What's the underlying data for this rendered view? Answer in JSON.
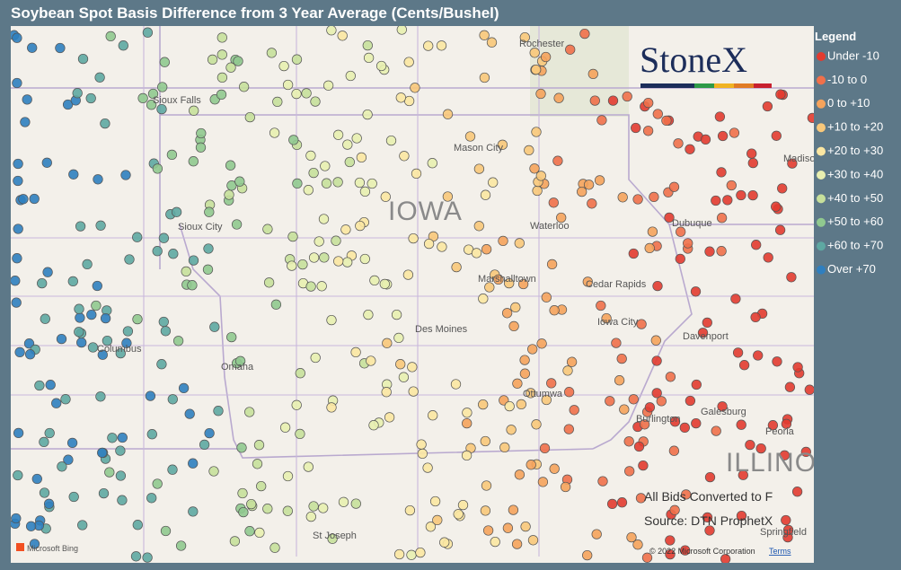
{
  "header": {
    "title": "Soybean Spot Basis Difference from 3 Year Average (Cents/Bushel)"
  },
  "legend": {
    "title": "Legend",
    "items": [
      {
        "label": "Under -10",
        "color": "#e23b30"
      },
      {
        "label": "-10 to 0",
        "color": "#f0704a"
      },
      {
        "label": "0 to +10",
        "color": "#f5a35c"
      },
      {
        "label": "+10 to +20",
        "color": "#f8c87a"
      },
      {
        "label": "+20 to +30",
        "color": "#fbe7a2"
      },
      {
        "label": "+30 to +40",
        "color": "#e8efb0"
      },
      {
        "label": "+40 to +50",
        "color": "#c7e09b"
      },
      {
        "label": "+50 to +60",
        "color": "#90c98f"
      },
      {
        "label": "+60 to +70",
        "color": "#5ea8a2"
      },
      {
        "label": "Over +70",
        "color": "#2f7fbf"
      }
    ]
  },
  "map": {
    "labels": [
      "Rochester",
      "Sioux Falls",
      "Mason City",
      "IOWA",
      "Waterloo",
      "Dubuque",
      "Sioux City",
      "Marshalltown",
      "Cedar Rapids",
      "Des Moines",
      "Iowa City",
      "Davenport",
      "Columbus",
      "Omaha",
      "Ottumwa",
      "Burlington",
      "Galesburg",
      "Peoria",
      "ILLINOIS",
      "St Joseph",
      "Springfield",
      "Madison"
    ],
    "logo": "StoneX",
    "notes": [
      "All Bids Converted to F",
      "Source: DTN ProphetX"
    ],
    "attribution": "Microsoft Bing",
    "copyright": "© 2022 Microsoft Corporation",
    "terms": "Terms"
  }
}
